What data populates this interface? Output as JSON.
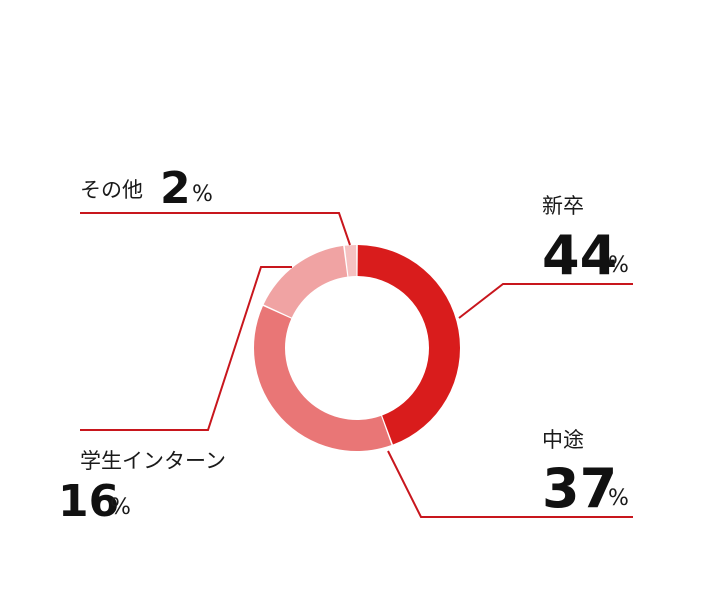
{
  "chart_data": {
    "type": "pie",
    "donut": true,
    "categories": [
      "新卒",
      "中途",
      "学生インターン",
      "その他"
    ],
    "values": [
      44,
      37,
      16,
      2
    ],
    "colors": [
      "#d91c1c",
      "#e97676",
      "#f0a3a3",
      "#f5c1c1"
    ],
    "leader_color": "#c8161d",
    "unit": "%"
  }
}
